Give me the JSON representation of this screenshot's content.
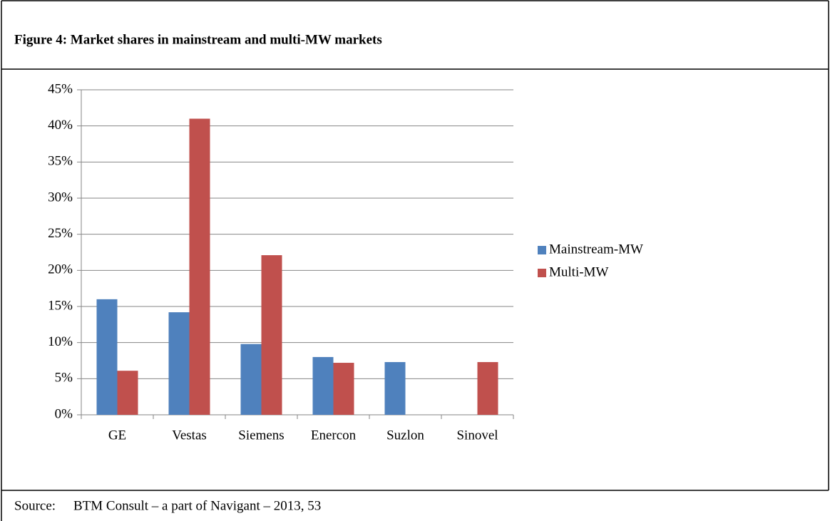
{
  "chart_data": {
    "type": "bar",
    "title": "Figure 4:  Market shares in mainstream and multi-MW markets",
    "source_label": "Source:",
    "source": "BTM Consult – a part of Navigant – 2013, 53",
    "categories": [
      "GE",
      "Vestas",
      "Siemens",
      "Enercon",
      "Suzlon",
      "Sinovel"
    ],
    "series": [
      {
        "name": "Mainstream-MW",
        "color": "#4f81bd",
        "values": [
          16,
          14.2,
          9.8,
          8,
          7.3,
          null
        ]
      },
      {
        "name": "Multi-MW",
        "color": "#c0504d",
        "values": [
          6.1,
          41,
          22.1,
          7.2,
          null,
          7.3
        ]
      }
    ],
    "ylim": [
      0,
      45
    ],
    "yticks": [
      {
        "value": 0,
        "label": "0%"
      },
      {
        "value": 5,
        "label": "5%"
      },
      {
        "value": 10,
        "label": "10%"
      },
      {
        "value": 15,
        "label": "15%"
      },
      {
        "value": 20,
        "label": "20%"
      },
      {
        "value": 25,
        "label": "25%"
      },
      {
        "value": 30,
        "label": "30%"
      },
      {
        "value": 35,
        "label": "35%"
      },
      {
        "value": 40,
        "label": "40%"
      },
      {
        "value": 45,
        "label": "45%"
      }
    ],
    "grid": true,
    "legend": "right"
  }
}
